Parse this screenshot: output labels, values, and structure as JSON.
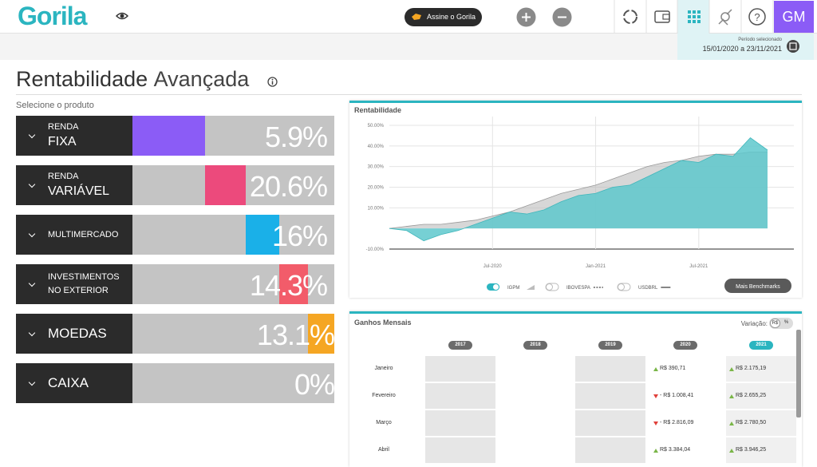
{
  "header": {
    "logo": "Gorila",
    "subscribe": "Assine o Gorila",
    "avatar": "GM",
    "period_label": "Período selecionado",
    "period": "15/01/2020 a 23/11/2021"
  },
  "page_title": {
    "main": "Rentabilidade",
    "light": "Avançada"
  },
  "products_label": "Selecione o produto",
  "products": [
    {
      "small": "RENDA",
      "large": "FIXA",
      "value": "5.9%",
      "color": "#8b5cf6"
    },
    {
      "small": "RENDA",
      "large": "VARIÁVEL",
      "value": "20.6%",
      "color": "#ec4a7c"
    },
    {
      "small": "MULTIMERCADO",
      "value": "16%",
      "color": "#1ab0e8"
    },
    {
      "small": "INVESTIMENTOS NO EXTERIOR",
      "value": "14.3%",
      "color": "#f25c6a"
    },
    {
      "large": "MOEDAS",
      "value": "13.1%",
      "color": "#f5a623"
    },
    {
      "large": "CAIXA",
      "value": "0%"
    }
  ],
  "chart_data": {
    "type": "area",
    "title": "Rentabilidade",
    "categories": [
      null,
      null,
      null,
      null,
      null,
      null,
      "Jul-2020",
      null,
      null,
      null,
      null,
      null,
      "Jan-2021",
      null,
      null,
      null,
      null,
      null,
      "Jul-2021",
      null,
      null,
      null,
      null
    ],
    "series": [
      {
        "color": "#5ec8cc",
        "values": [
          0,
          -1,
          -6,
          -3,
          -1,
          2,
          5,
          8,
          7,
          9,
          13,
          16,
          17,
          20,
          21,
          25,
          29,
          33,
          32,
          36,
          35,
          44,
          38
        ]
      },
      {
        "name": "IGPM",
        "color": "#bdbdbd",
        "values": [
          0,
          1,
          2,
          2,
          3,
          4,
          6,
          8,
          11,
          14,
          17,
          19,
          21,
          24,
          27,
          30,
          32,
          33,
          35,
          36,
          36,
          37,
          37
        ]
      }
    ],
    "inactive_benchmarks": [
      "IBOVESPA",
      "USDBRL"
    ],
    "button": "Mais Benchmarks",
    "ylim": [
      -10,
      50
    ],
    "yticks": [
      {
        "value": -10,
        "label": "-10.00%"
      },
      {
        "value": 10,
        "label": "10.00%"
      },
      {
        "value": 20,
        "label": "20.00%"
      },
      {
        "value": 30,
        "label": "30.00%"
      },
      {
        "value": 40,
        "label": "40.00%"
      },
      {
        "value": 50,
        "label": "50.00%"
      }
    ],
    "grid": true
  },
  "monthly": {
    "title": "Ganhos Mensais",
    "variation_label": "Variação:",
    "toggle": [
      "R$",
      "%"
    ],
    "years": [
      2017,
      2018,
      2019,
      2020,
      2021
    ],
    "rows": [
      {
        "month": "Janeiro",
        "values": [
          null,
          null,
          null,
          "R$ 390,71",
          "R$ 2.175,19"
        ]
      },
      {
        "month": "Fevereiro",
        "values": [
          null,
          null,
          null,
          "- R$ 1.008,41",
          "R$ 2.655,25"
        ]
      },
      {
        "month": "Março",
        "values": [
          null,
          null,
          null,
          "- R$ 2.816,09",
          "R$ 2.780,50"
        ]
      },
      {
        "month": "Abril",
        "values": [
          null,
          null,
          null,
          "R$ 3.384,04",
          "R$ 3.946,25"
        ]
      }
    ]
  }
}
